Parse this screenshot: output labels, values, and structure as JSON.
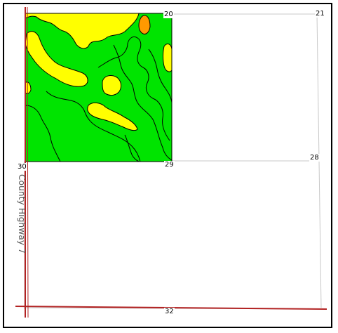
{
  "map": {
    "section_labels": {
      "s20": "20",
      "s21": "21",
      "s28": "28",
      "s29": "29",
      "s30": "30",
      "s32": "32"
    },
    "road_label": "County Highway 7",
    "colors": {
      "green": "#00e400",
      "yellow": "#ffff00",
      "orange": "#ff9900",
      "road": "#b22222",
      "section_line": "#c0c0c0",
      "outline": "#000000"
    }
  }
}
